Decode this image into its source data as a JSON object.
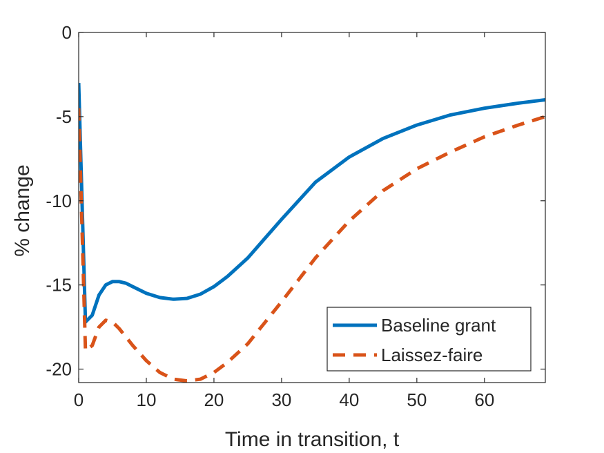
{
  "chart_data": {
    "type": "line",
    "xlabel": "Time in transition, t",
    "ylabel": "% change",
    "xlim": [
      0,
      69
    ],
    "ylim": [
      -20.8,
      0
    ],
    "xticks": [
      0,
      10,
      20,
      30,
      40,
      50,
      60
    ],
    "yticks": [
      0,
      -5,
      -10,
      -15,
      -20
    ],
    "grid": false,
    "legend_position": "bottom-right",
    "series": [
      {
        "name": "Baseline grant",
        "color": "#0072BD",
        "style": "solid",
        "x": [
          0,
          1,
          2,
          3,
          4,
          5,
          6,
          7,
          8,
          10,
          12,
          14,
          16,
          18,
          20,
          22,
          25,
          30,
          35,
          40,
          45,
          50,
          55,
          60,
          65,
          69
        ],
        "y": [
          -3.0,
          -17.2,
          -16.8,
          -15.6,
          -15.0,
          -14.8,
          -14.8,
          -14.9,
          -15.1,
          -15.5,
          -15.75,
          -15.85,
          -15.8,
          -15.55,
          -15.1,
          -14.5,
          -13.4,
          -11.1,
          -8.9,
          -7.4,
          -6.3,
          -5.5,
          -4.9,
          -4.5,
          -4.2,
          -4.0
        ]
      },
      {
        "name": "Laissez-faire",
        "color": "#D95319",
        "style": "dashed",
        "x": [
          0,
          1,
          2,
          3,
          4,
          5,
          6,
          8,
          10,
          12,
          14,
          16,
          18,
          20,
          22,
          25,
          30,
          35,
          40,
          45,
          50,
          55,
          60,
          65,
          69
        ],
        "y": [
          -4.5,
          -18.9,
          -18.6,
          -17.5,
          -17.1,
          -17.2,
          -17.6,
          -18.6,
          -19.5,
          -20.2,
          -20.6,
          -20.7,
          -20.6,
          -20.2,
          -19.6,
          -18.5,
          -16.0,
          -13.4,
          -11.2,
          -9.4,
          -8.1,
          -7.1,
          -6.2,
          -5.5,
          -5.0
        ]
      }
    ]
  }
}
